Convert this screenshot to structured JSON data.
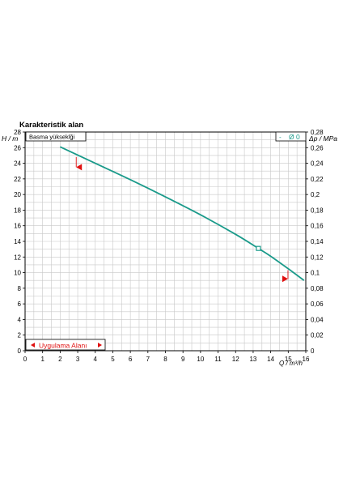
{
  "chart_data": {
    "type": "line",
    "title": "Karakteristik alan",
    "ylabel": "H / m",
    "y2label": "Δp / MPa",
    "xlabel": "Q / m³/h",
    "panel_label": "Basma yükseklği",
    "legend_label": "Ø 0",
    "legend_prefix": "-",
    "application_label": "Uygulama Alanı",
    "xlim": [
      0,
      16
    ],
    "ylim": [
      0,
      28
    ],
    "y2lim": [
      0,
      0.28
    ],
    "grid": true,
    "xticks": [
      "0",
      "1",
      "2",
      "3",
      "4",
      "5",
      "6",
      "7",
      "8",
      "9",
      "10",
      "11",
      "12",
      "13",
      "14",
      "15",
      "16"
    ],
    "yticks": [
      "0",
      "2",
      "4",
      "6",
      "8",
      "10",
      "12",
      "14",
      "16",
      "18",
      "20",
      "22",
      "24",
      "26",
      "28"
    ],
    "y2ticks": [
      "0",
      "0,02",
      "0,04",
      "0,06",
      "0,08",
      "0,1",
      "0,12",
      "0,14",
      "0,16",
      "0,18",
      "0,2",
      "0,22",
      "0,24",
      "0,26",
      "0,28"
    ],
    "series": [
      {
        "name": "Ø 0",
        "color": "#1a9a8a",
        "x": [
          2,
          4,
          6,
          8,
          10,
          12,
          13.3,
          14,
          15,
          15.9
        ],
        "y": [
          26.1,
          24.0,
          21.9,
          19.7,
          17.4,
          14.9,
          13.1,
          12.1,
          10.5,
          9.0
        ]
      }
    ],
    "operating_point": {
      "x": 13.3,
      "y": 13.1
    },
    "range_markers": [
      {
        "direction": "left",
        "x": 3.1,
        "y": 23.5,
        "color": "#e01010"
      },
      {
        "direction": "right",
        "x": 14.8,
        "y": 9.2,
        "color": "#e01010"
      }
    ]
  }
}
